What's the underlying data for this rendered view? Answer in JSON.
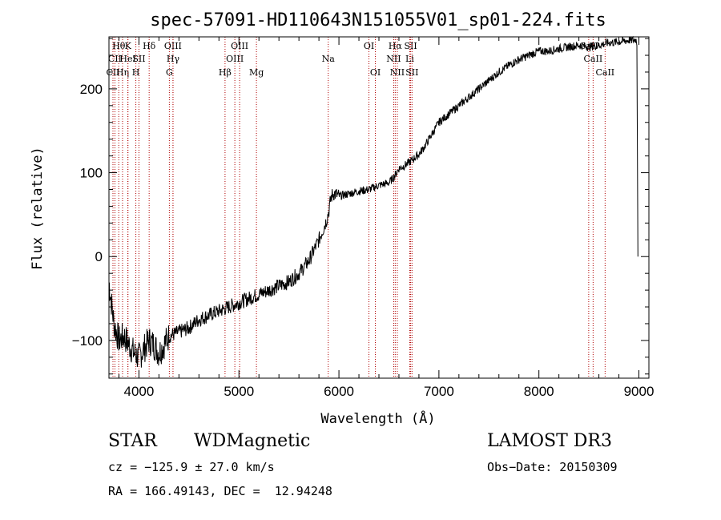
{
  "chart_data": {
    "type": "line",
    "title": "spec-57091-HD110643N151055V01_sp01-224.fits",
    "xlabel": "Wavelength (Å)",
    "ylabel": "Flux (relative)",
    "xlim": [
      3700,
      9100
    ],
    "ylim": [
      -145,
      262
    ],
    "xticks": [
      4000,
      5000,
      6000,
      7000,
      8000,
      9000
    ],
    "yticks": [
      -100,
      0,
      100,
      200
    ],
    "x": [
      3700,
      3750,
      3800,
      3850,
      3900,
      3950,
      4000,
      4050,
      4100,
      4150,
      4200,
      4300,
      4400,
      4500,
      4600,
      4700,
      4800,
      4900,
      5000,
      5100,
      5200,
      5300,
      5400,
      5500,
      5600,
      5700,
      5800,
      5850,
      5880,
      5900,
      5920,
      5940,
      5960,
      6000,
      6100,
      6200,
      6300,
      6400,
      6500,
      6550,
      6600,
      6650,
      6700,
      6750,
      6800,
      6850,
      6900,
      6950,
      7000,
      7100,
      7200,
      7300,
      7400,
      7500,
      7600,
      7700,
      7800,
      7900,
      8000,
      8100,
      8200,
      8300,
      8400,
      8500,
      8600,
      8700,
      8800,
      8900,
      8950,
      8970,
      8980,
      8990
    ],
    "y": [
      -30,
      -80,
      -100,
      -95,
      -105,
      -115,
      -120,
      -110,
      -100,
      -105,
      -115,
      -95,
      -90,
      -85,
      -75,
      -70,
      -65,
      -60,
      -55,
      -50,
      -45,
      -40,
      -35,
      -30,
      -20,
      -5,
      20,
      35,
      45,
      55,
      70,
      75,
      75,
      72,
      75,
      78,
      80,
      85,
      88,
      95,
      105,
      108,
      112,
      117,
      122,
      130,
      140,
      150,
      160,
      170,
      180,
      190,
      200,
      210,
      220,
      228,
      235,
      240,
      245,
      245,
      248,
      250,
      252,
      250,
      252,
      255,
      256,
      258,
      258,
      259,
      255,
      0
    ],
    "lines": [
      {
        "label": "CII",
        "x": 3740,
        "row": 2
      },
      {
        "label": "Hθ",
        "x": 3798,
        "row": 0
      },
      {
        "label": "CII",
        "x": 3760,
        "row": 1
      },
      {
        "label": "Hη",
        "x": 3836,
        "row": 2
      },
      {
        "label": "K",
        "x": 3890,
        "row": 0
      },
      {
        "label": "HeI",
        "x": 3889,
        "row": 1
      },
      {
        "label": "H",
        "x": 3969,
        "row": 2
      },
      {
        "label": "SII",
        "x": 4000,
        "row": 1
      },
      {
        "label": "Hδ",
        "x": 4102,
        "row": 0
      },
      {
        "label": "OIII",
        "x": 4340,
        "row": 0
      },
      {
        "label": "Hγ",
        "x": 4341,
        "row": 1
      },
      {
        "label": "G",
        "x": 4304,
        "row": 2
      },
      {
        "label": "Hβ",
        "x": 4861,
        "row": 2
      },
      {
        "label": "OIII",
        "x": 4959,
        "row": 1
      },
      {
        "label": "OIII",
        "x": 5007,
        "row": 0
      },
      {
        "label": "Mg",
        "x": 5175,
        "row": 2
      },
      {
        "label": "Na",
        "x": 5893,
        "row": 1
      },
      {
        "label": "OI",
        "x": 6300,
        "row": 0
      },
      {
        "label": "OI",
        "x": 6364,
        "row": 2
      },
      {
        "label": "Hα",
        "x": 6563,
        "row": 0
      },
      {
        "label": "NII",
        "x": 6548,
        "row": 1
      },
      {
        "label": "NII",
        "x": 6584,
        "row": 2
      },
      {
        "label": "SII",
        "x": 6717,
        "row": 0
      },
      {
        "label": "Li",
        "x": 6708,
        "row": 1
      },
      {
        "label": "SII",
        "x": 6731,
        "row": 2
      },
      {
        "label": "CaII",
        "x": 8498,
        "row": 0
      },
      {
        "label": "CaII",
        "x": 8542,
        "row": 1
      },
      {
        "label": "CaII",
        "x": 8662,
        "row": 2
      }
    ]
  },
  "info": {
    "class_label": "STAR",
    "subclass": "WDMagnetic",
    "survey": "LAMOST DR3",
    "cz": "cz = −125.9 ± 27.0 km/s",
    "obs_date": "Obs−Date: 20150309",
    "coords": "RA = 166.49143, DEC =  12.94248"
  }
}
